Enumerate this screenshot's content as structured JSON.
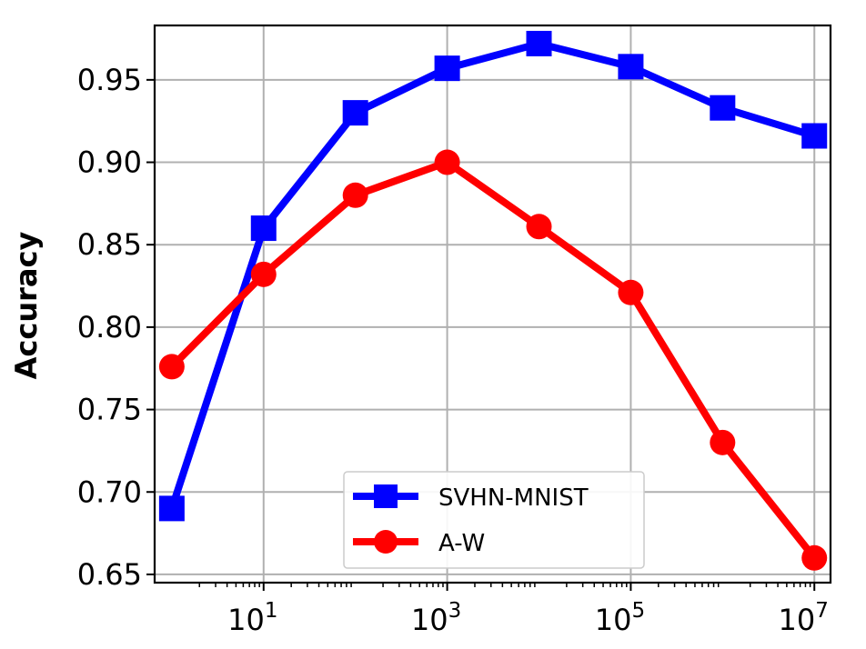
{
  "chart_data": {
    "type": "line",
    "xscale": "log",
    "x": [
      1,
      10,
      100,
      1000,
      10000,
      100000,
      1000000,
      10000000
    ],
    "series": [
      {
        "name": "SVHN-MNIST",
        "color": "#0000ff",
        "marker": "square",
        "values": [
          0.69,
          0.86,
          0.93,
          0.957,
          0.972,
          0.958,
          0.933,
          0.916
        ]
      },
      {
        "name": "A-W",
        "color": "#ff0000",
        "marker": "circle",
        "values": [
          0.776,
          0.832,
          0.88,
          0.9,
          0.861,
          0.821,
          0.73,
          0.66
        ]
      }
    ],
    "xlabel": "",
    "ylabel": "Accuracy",
    "xlim": [
      0.65,
      15000000
    ],
    "ylim": [
      0.645,
      0.983
    ],
    "xticks": [
      {
        "value": 10,
        "base": "10",
        "exp": "1"
      },
      {
        "value": 1000,
        "base": "10",
        "exp": "3"
      },
      {
        "value": 100000,
        "base": "10",
        "exp": "5"
      },
      {
        "value": 10000000,
        "base": "10",
        "exp": "7"
      }
    ],
    "yticks": [
      {
        "value": 0.65,
        "label": "0.65"
      },
      {
        "value": 0.7,
        "label": "0.70"
      },
      {
        "value": 0.75,
        "label": "0.75"
      },
      {
        "value": 0.8,
        "label": "0.80"
      },
      {
        "value": 0.85,
        "label": "0.85"
      },
      {
        "value": 0.9,
        "label": "0.90"
      },
      {
        "value": 0.95,
        "label": "0.95"
      }
    ],
    "grid": true,
    "legend_position": "bottom-center"
  }
}
